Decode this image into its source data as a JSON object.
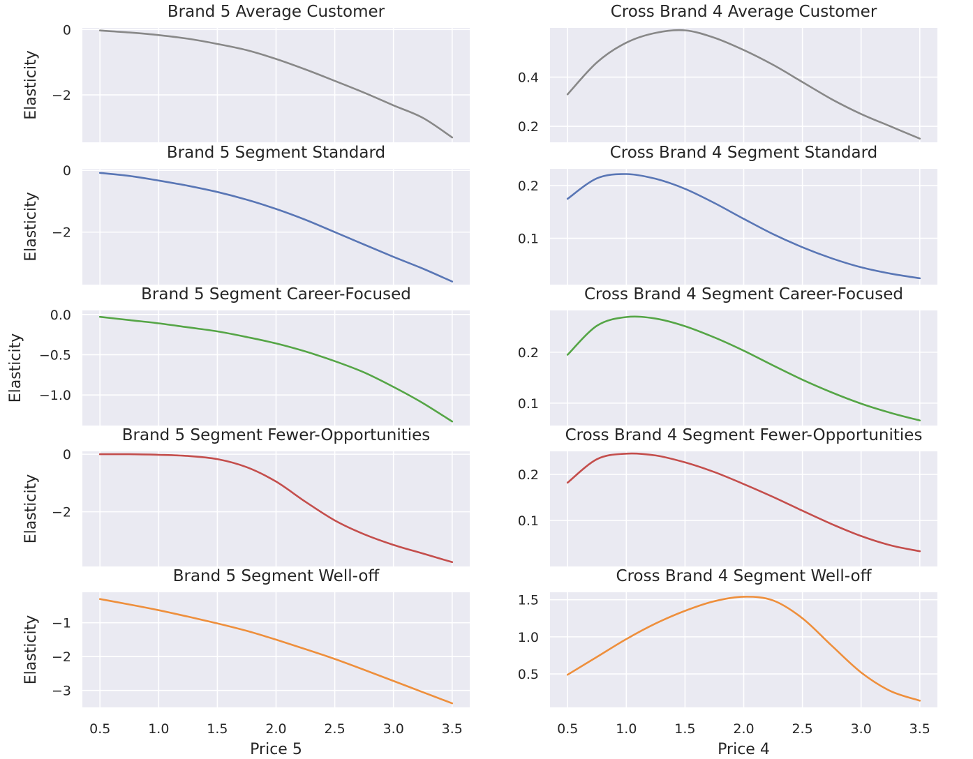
{
  "chart_data": [
    {
      "type": "line",
      "title": "Brand 5 Average Customer",
      "xlabel": "",
      "ylabel": "Elasticity",
      "xlim": [
        0.35,
        3.65
      ],
      "ylim": [
        -3.45,
        0.05
      ],
      "yticks": [
        0,
        -2
      ],
      "ytick_labels": [
        "0",
        "−2"
      ],
      "xticks": [
        0.5,
        1.0,
        1.5,
        2.0,
        2.5,
        3.0,
        3.5
      ],
      "xtick_labels": [],
      "grid": true,
      "color": "#888888",
      "x": [
        0.5,
        0.75,
        1.0,
        1.25,
        1.5,
        1.75,
        2.0,
        2.25,
        2.5,
        2.75,
        3.0,
        3.25,
        3.5
      ],
      "y": [
        -0.03,
        -0.09,
        -0.17,
        -0.28,
        -0.44,
        -0.63,
        -0.9,
        -1.22,
        -1.57,
        -1.93,
        -2.32,
        -2.7,
        -3.3
      ]
    },
    {
      "type": "line",
      "title": "Cross Brand 4 Average Customer",
      "xlabel": "",
      "ylabel": "",
      "xlim": [
        0.35,
        3.65
      ],
      "ylim": [
        0.135,
        0.6
      ],
      "yticks": [
        0.4,
        0.2
      ],
      "ytick_labels": [
        "0.4",
        "0.2"
      ],
      "xticks": [
        0.5,
        1.0,
        1.5,
        2.0,
        2.5,
        3.0,
        3.5
      ],
      "xtick_labels": [],
      "grid": true,
      "color": "#888888",
      "x": [
        0.5,
        0.75,
        1.0,
        1.25,
        1.5,
        1.75,
        2.0,
        2.25,
        2.5,
        2.75,
        3.0,
        3.25,
        3.5
      ],
      "y": [
        0.33,
        0.46,
        0.54,
        0.58,
        0.59,
        0.56,
        0.51,
        0.45,
        0.38,
        0.31,
        0.25,
        0.2,
        0.15
      ]
    },
    {
      "type": "line",
      "title": "Brand 5 Segment Standard",
      "xlabel": "",
      "ylabel": "Elasticity",
      "xlim": [
        0.35,
        3.65
      ],
      "ylim": [
        -3.7,
        0.05
      ],
      "yticks": [
        0,
        -2
      ],
      "ytick_labels": [
        "0",
        "−2"
      ],
      "xticks": [
        0.5,
        1.0,
        1.5,
        2.0,
        2.5,
        3.0,
        3.5
      ],
      "xtick_labels": [],
      "grid": true,
      "color": "#5976b5",
      "x": [
        0.5,
        0.75,
        1.0,
        1.25,
        1.5,
        1.75,
        2.0,
        2.25,
        2.5,
        2.75,
        3.0,
        3.25,
        3.5
      ],
      "y": [
        -0.08,
        -0.18,
        -0.33,
        -0.5,
        -0.7,
        -0.95,
        -1.25,
        -1.6,
        -2.0,
        -2.4,
        -2.8,
        -3.18,
        -3.6
      ]
    },
    {
      "type": "line",
      "title": "Cross Brand 4 Segment Standard",
      "xlabel": "",
      "ylabel": "",
      "xlim": [
        0.35,
        3.65
      ],
      "ylim": [
        0.012,
        0.232
      ],
      "yticks": [
        0.2,
        0.1
      ],
      "ytick_labels": [
        "0.2",
        "0.1"
      ],
      "xticks": [
        0.5,
        1.0,
        1.5,
        2.0,
        2.5,
        3.0,
        3.5
      ],
      "xtick_labels": [],
      "grid": true,
      "color": "#5976b5",
      "x": [
        0.5,
        0.75,
        1.0,
        1.25,
        1.5,
        1.75,
        2.0,
        2.25,
        2.5,
        2.75,
        3.0,
        3.25,
        3.5
      ],
      "y": [
        0.175,
        0.214,
        0.222,
        0.213,
        0.194,
        0.167,
        0.137,
        0.108,
        0.083,
        0.062,
        0.045,
        0.033,
        0.024
      ]
    },
    {
      "type": "line",
      "title": "Brand 5 Segment Career-Focused",
      "xlabel": "",
      "ylabel": "Elasticity",
      "xlim": [
        0.35,
        3.65
      ],
      "ylim": [
        -1.38,
        0.05
      ],
      "yticks": [
        0.0,
        -0.5,
        -1.0
      ],
      "ytick_labels": [
        "0.0",
        "−0.5",
        "−1.0"
      ],
      "xticks": [
        0.5,
        1.0,
        1.5,
        2.0,
        2.5,
        3.0,
        3.5
      ],
      "xtick_labels": [],
      "grid": true,
      "color": "#55a546",
      "x": [
        0.5,
        0.75,
        1.0,
        1.25,
        1.5,
        1.75,
        2.0,
        2.25,
        2.5,
        2.75,
        3.0,
        3.25,
        3.5
      ],
      "y": [
        -0.03,
        -0.07,
        -0.11,
        -0.16,
        -0.21,
        -0.28,
        -0.36,
        -0.46,
        -0.58,
        -0.72,
        -0.9,
        -1.1,
        -1.33
      ]
    },
    {
      "type": "line",
      "title": "Cross Brand 4 Segment Career-Focused",
      "xlabel": "",
      "ylabel": "",
      "xlim": [
        0.35,
        3.65
      ],
      "ylim": [
        0.056,
        0.282
      ],
      "yticks": [
        0.2,
        0.1
      ],
      "ytick_labels": [
        "0.2",
        "0.1"
      ],
      "xticks": [
        0.5,
        1.0,
        1.5,
        2.0,
        2.5,
        3.0,
        3.5
      ],
      "xtick_labels": [],
      "grid": true,
      "color": "#55a546",
      "x": [
        0.5,
        0.75,
        1.0,
        1.25,
        1.5,
        1.75,
        2.0,
        2.25,
        2.5,
        2.75,
        3.0,
        3.25,
        3.5
      ],
      "y": [
        0.195,
        0.252,
        0.269,
        0.266,
        0.251,
        0.229,
        0.203,
        0.174,
        0.146,
        0.121,
        0.099,
        0.081,
        0.066
      ]
    },
    {
      "type": "line",
      "title": "Brand 5 Segment Fewer-Opportunities",
      "xlabel": "",
      "ylabel": "Elasticity",
      "xlim": [
        0.35,
        3.65
      ],
      "ylim": [
        -3.9,
        0.1
      ],
      "yticks": [
        0,
        -2
      ],
      "ytick_labels": [
        "0",
        "−2"
      ],
      "xticks": [
        0.5,
        1.0,
        1.5,
        2.0,
        2.5,
        3.0,
        3.5
      ],
      "xtick_labels": [],
      "grid": true,
      "color": "#c44e4c",
      "x": [
        0.5,
        0.75,
        1.0,
        1.25,
        1.5,
        1.75,
        2.0,
        2.25,
        2.5,
        2.75,
        3.0,
        3.25,
        3.5
      ],
      "y": [
        0.0,
        0.0,
        -0.02,
        -0.06,
        -0.17,
        -0.45,
        -0.95,
        -1.65,
        -2.3,
        -2.78,
        -3.15,
        -3.45,
        -3.75
      ]
    },
    {
      "type": "line",
      "title": "Cross Brand 4 Segment Fewer-Opportunities",
      "xlabel": "",
      "ylabel": "",
      "xlim": [
        0.35,
        3.65
      ],
      "ylim": [
        0.0,
        0.25
      ],
      "yticks": [
        0.2,
        0.1
      ],
      "ytick_labels": [
        "0.2",
        "0.1"
      ],
      "xticks": [
        0.5,
        1.0,
        1.5,
        2.0,
        2.5,
        3.0,
        3.5
      ],
      "xtick_labels": [],
      "grid": true,
      "color": "#c44e4c",
      "x": [
        0.5,
        0.75,
        1.0,
        1.25,
        1.5,
        1.75,
        2.0,
        2.25,
        2.5,
        2.75,
        3.0,
        3.25,
        3.5
      ],
      "y": [
        0.182,
        0.233,
        0.245,
        0.241,
        0.226,
        0.205,
        0.179,
        0.151,
        0.121,
        0.092,
        0.066,
        0.046,
        0.033
      ]
    },
    {
      "type": "line",
      "title": "Brand 5 Segment Well-off",
      "xlabel": "Price 5",
      "ylabel": "Elasticity",
      "xlim": [
        0.35,
        3.65
      ],
      "ylim": [
        -3.5,
        -0.1
      ],
      "yticks": [
        -1,
        -2,
        -3
      ],
      "ytick_labels": [
        "−1",
        "−2",
        "−3"
      ],
      "xticks": [
        0.5,
        1.0,
        1.5,
        2.0,
        2.5,
        3.0,
        3.5
      ],
      "xtick_labels": [
        "0.5",
        "1.0",
        "1.5",
        "2.0",
        "2.5",
        "3.0",
        "3.5"
      ],
      "grid": true,
      "color": "#ee8f3c",
      "x": [
        0.5,
        0.75,
        1.0,
        1.25,
        1.5,
        1.75,
        2.0,
        2.25,
        2.5,
        2.75,
        3.0,
        3.25,
        3.5
      ],
      "y": [
        -0.3,
        -0.46,
        -0.63,
        -0.82,
        -1.02,
        -1.24,
        -1.5,
        -1.78,
        -2.07,
        -2.39,
        -2.72,
        -3.05,
        -3.38
      ]
    },
    {
      "type": "line",
      "title": "Cross Brand 4 Segment Well-off",
      "xlabel": "Price 4",
      "ylabel": "",
      "xlim": [
        0.35,
        3.65
      ],
      "ylim": [
        0.05,
        1.6
      ],
      "yticks": [
        1.5,
        1.0,
        0.5
      ],
      "ytick_labels": [
        "1.5",
        "1.0",
        "0.5"
      ],
      "xticks": [
        0.5,
        1.0,
        1.5,
        2.0,
        2.5,
        3.0,
        3.5
      ],
      "xtick_labels": [
        "0.5",
        "1.0",
        "1.5",
        "2.0",
        "2.5",
        "3.0",
        "3.5"
      ],
      "grid": true,
      "color": "#ee8f3c",
      "x": [
        0.5,
        0.75,
        1.0,
        1.25,
        1.5,
        1.75,
        2.0,
        2.25,
        2.5,
        2.75,
        3.0,
        3.25,
        3.5
      ],
      "y": [
        0.49,
        0.73,
        0.97,
        1.18,
        1.35,
        1.48,
        1.54,
        1.49,
        1.25,
        0.88,
        0.52,
        0.27,
        0.14
      ]
    }
  ]
}
